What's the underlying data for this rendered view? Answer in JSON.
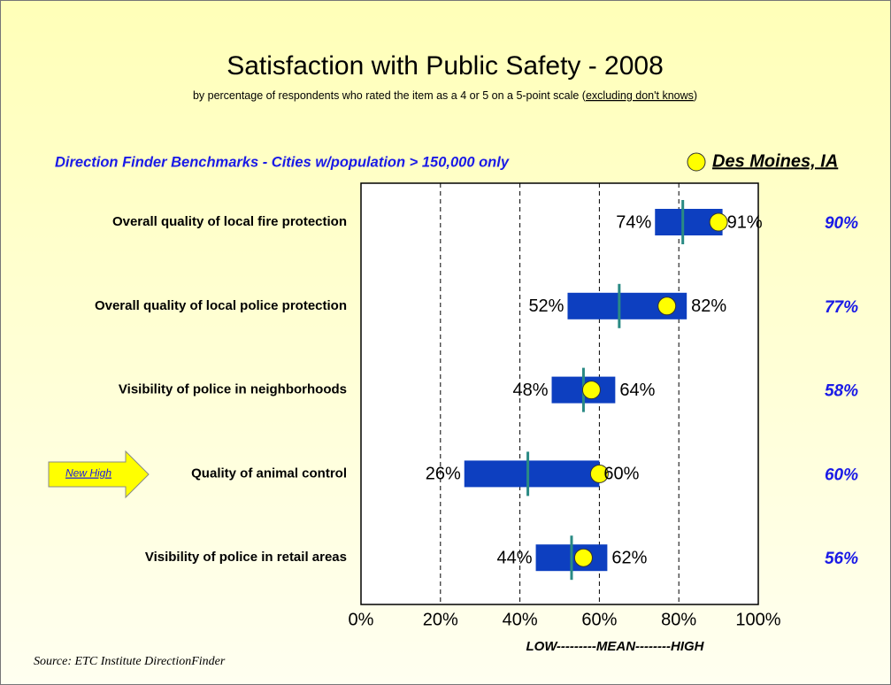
{
  "chart_data": {
    "type": "range",
    "title": "Satisfaction with Public Safety - 2008",
    "subtitle": "by percentage of respondents who rated the item as a 4 or 5 on a 5-point scale (",
    "subtitle_underlined": "excluding don't knows",
    "subtitle_end": ")",
    "benchmark_label": "Direction Finder Benchmarks - Cities w/population > 150,000 only",
    "categories": [
      "Overall quality of local fire protection",
      "Overall quality of local police protection",
      "Visibility of police in neighborhoods",
      "Quality of animal control",
      "Visibility of police in retail areas"
    ],
    "low": [
      74,
      52,
      48,
      26,
      44
    ],
    "low_labels": [
      "74%",
      "52%",
      "48%",
      "26%",
      "44%"
    ],
    "high": [
      91,
      82,
      64,
      60,
      62
    ],
    "high_labels": [
      "91%",
      "82%",
      "64%",
      "60%",
      "62%"
    ],
    "mean": [
      81,
      65,
      56,
      42,
      53
    ],
    "bar_color": "#0d3fc0",
    "mean_color": "#2a8a84",
    "series": [
      {
        "name": "Des Moines, IA",
        "color": "#ffff00",
        "values": [
          90,
          77,
          58,
          60,
          56
        ],
        "value_labels": [
          "90%",
          "77%",
          "58%",
          "60%",
          "56%"
        ]
      }
    ],
    "annotation": {
      "text": "New High",
      "category": 3
    },
    "xlim": [
      0,
      100
    ],
    "xticks": [
      {
        "value": 0,
        "label": "0%"
      },
      {
        "value": 20,
        "label": "20%"
      },
      {
        "value": 40,
        "label": "40%"
      },
      {
        "value": 60,
        "label": "60%"
      },
      {
        "value": 80,
        "label": "80%"
      },
      {
        "value": 100,
        "label": "100%"
      }
    ],
    "xlabel": "LOW---------MEAN--------HIGH",
    "grid": true,
    "source": "Source:  ETC Institute DirectionFinder"
  }
}
